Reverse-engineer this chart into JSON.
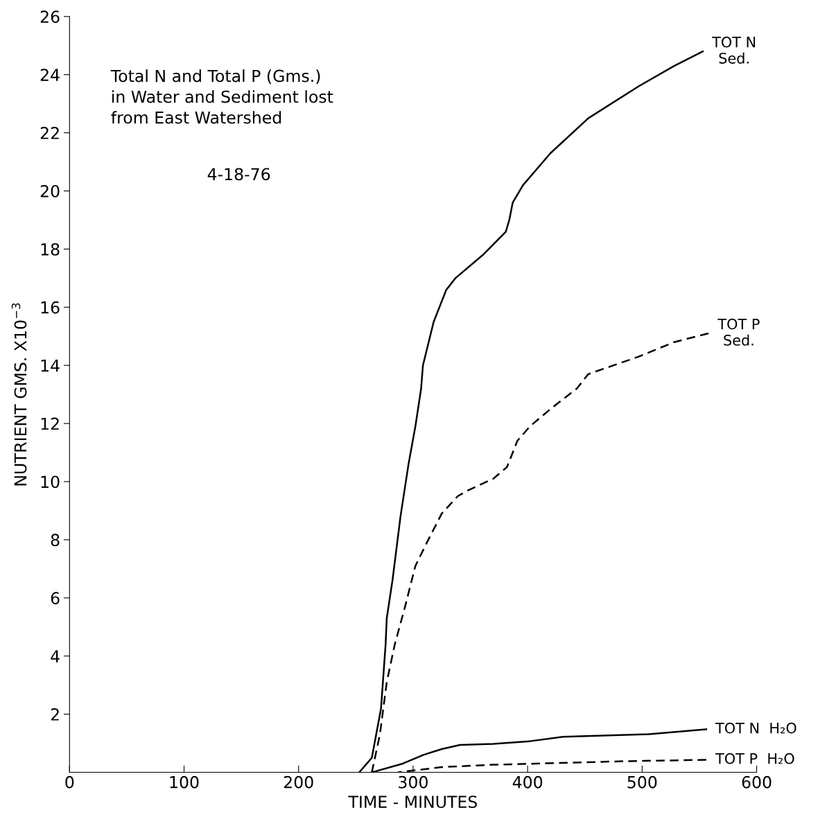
{
  "chart_data": {
    "type": "line",
    "title": "Total N and Total P (Gms.)\nin Water and Sediment lost\nfrom East Watershed",
    "subtitle": "4-18-76",
    "xlabel": "TIME - MINUTES",
    "ylabel": "NUTRIENT GMS. X10$^{−3}$",
    "xlim": [
      0,
      600
    ],
    "xticks": [
      0,
      100,
      200,
      300,
      400,
      500,
      600
    ],
    "ylim": [
      0,
      26
    ],
    "yticks": [
      2,
      4,
      6,
      8,
      10,
      12,
      14,
      16,
      18,
      20,
      22,
      24,
      26
    ],
    "grid": false,
    "legend": false,
    "marker": "none",
    "series": [
      {
        "name": "TOT N\nSed.",
        "color": "#000000",
        "line_style": "solid",
        "x": [
          253,
          264,
          272,
          276,
          277,
          282,
          289,
          296,
          302,
          307,
          308.6,
          318,
          329,
          337,
          361,
          381,
          384,
          387,
          396,
          420,
          453,
          497,
          528,
          553
        ],
        "values": [
          0,
          0.5,
          2.2,
          4.4,
          5.3,
          6.6,
          8.8,
          10.6,
          11.9,
          13.2,
          14.0,
          15.5,
          16.6,
          17.0,
          17.8,
          18.6,
          19.0,
          19.6,
          20.2,
          21.3,
          22.5,
          23.6,
          24.3,
          24.8
        ]
      },
      {
        "name": "TOT P\nSed.",
        "color": "#000000",
        "line_style": "dashed",
        "x": [
          264,
          271,
          277,
          284,
          293,
          302,
          312,
          325,
          339,
          348,
          370,
          382,
          385,
          391,
          402,
          420,
          443,
          453,
          497,
          528,
          558
        ],
        "values": [
          0,
          1.3,
          3.1,
          4.4,
          5.7,
          7.1,
          7.9,
          8.9,
          9.5,
          9.7,
          10.1,
          10.5,
          10.8,
          11.4,
          11.9,
          12.5,
          13.2,
          13.7,
          14.3,
          14.8,
          15.1
        ]
      },
      {
        "name": "TOT N  H₂O",
        "color": "#000000",
        "line_style": "solid",
        "x": [
          264,
          291,
          309,
          325,
          341,
          370,
          402,
          431,
          461,
          506,
          556
        ],
        "values": [
          0,
          0.3,
          0.6,
          0.8,
          0.94,
          0.98,
          1.07,
          1.22,
          1.26,
          1.31,
          1.48
        ]
      },
      {
        "name": "TOT P  H₂O",
        "color": "#000000",
        "line_style": "dashed",
        "x": [
          287,
          325,
          370,
          427,
          483,
          556
        ],
        "values": [
          0,
          0.18,
          0.26,
          0.32,
          0.38,
          0.43
        ]
      }
    ]
  }
}
